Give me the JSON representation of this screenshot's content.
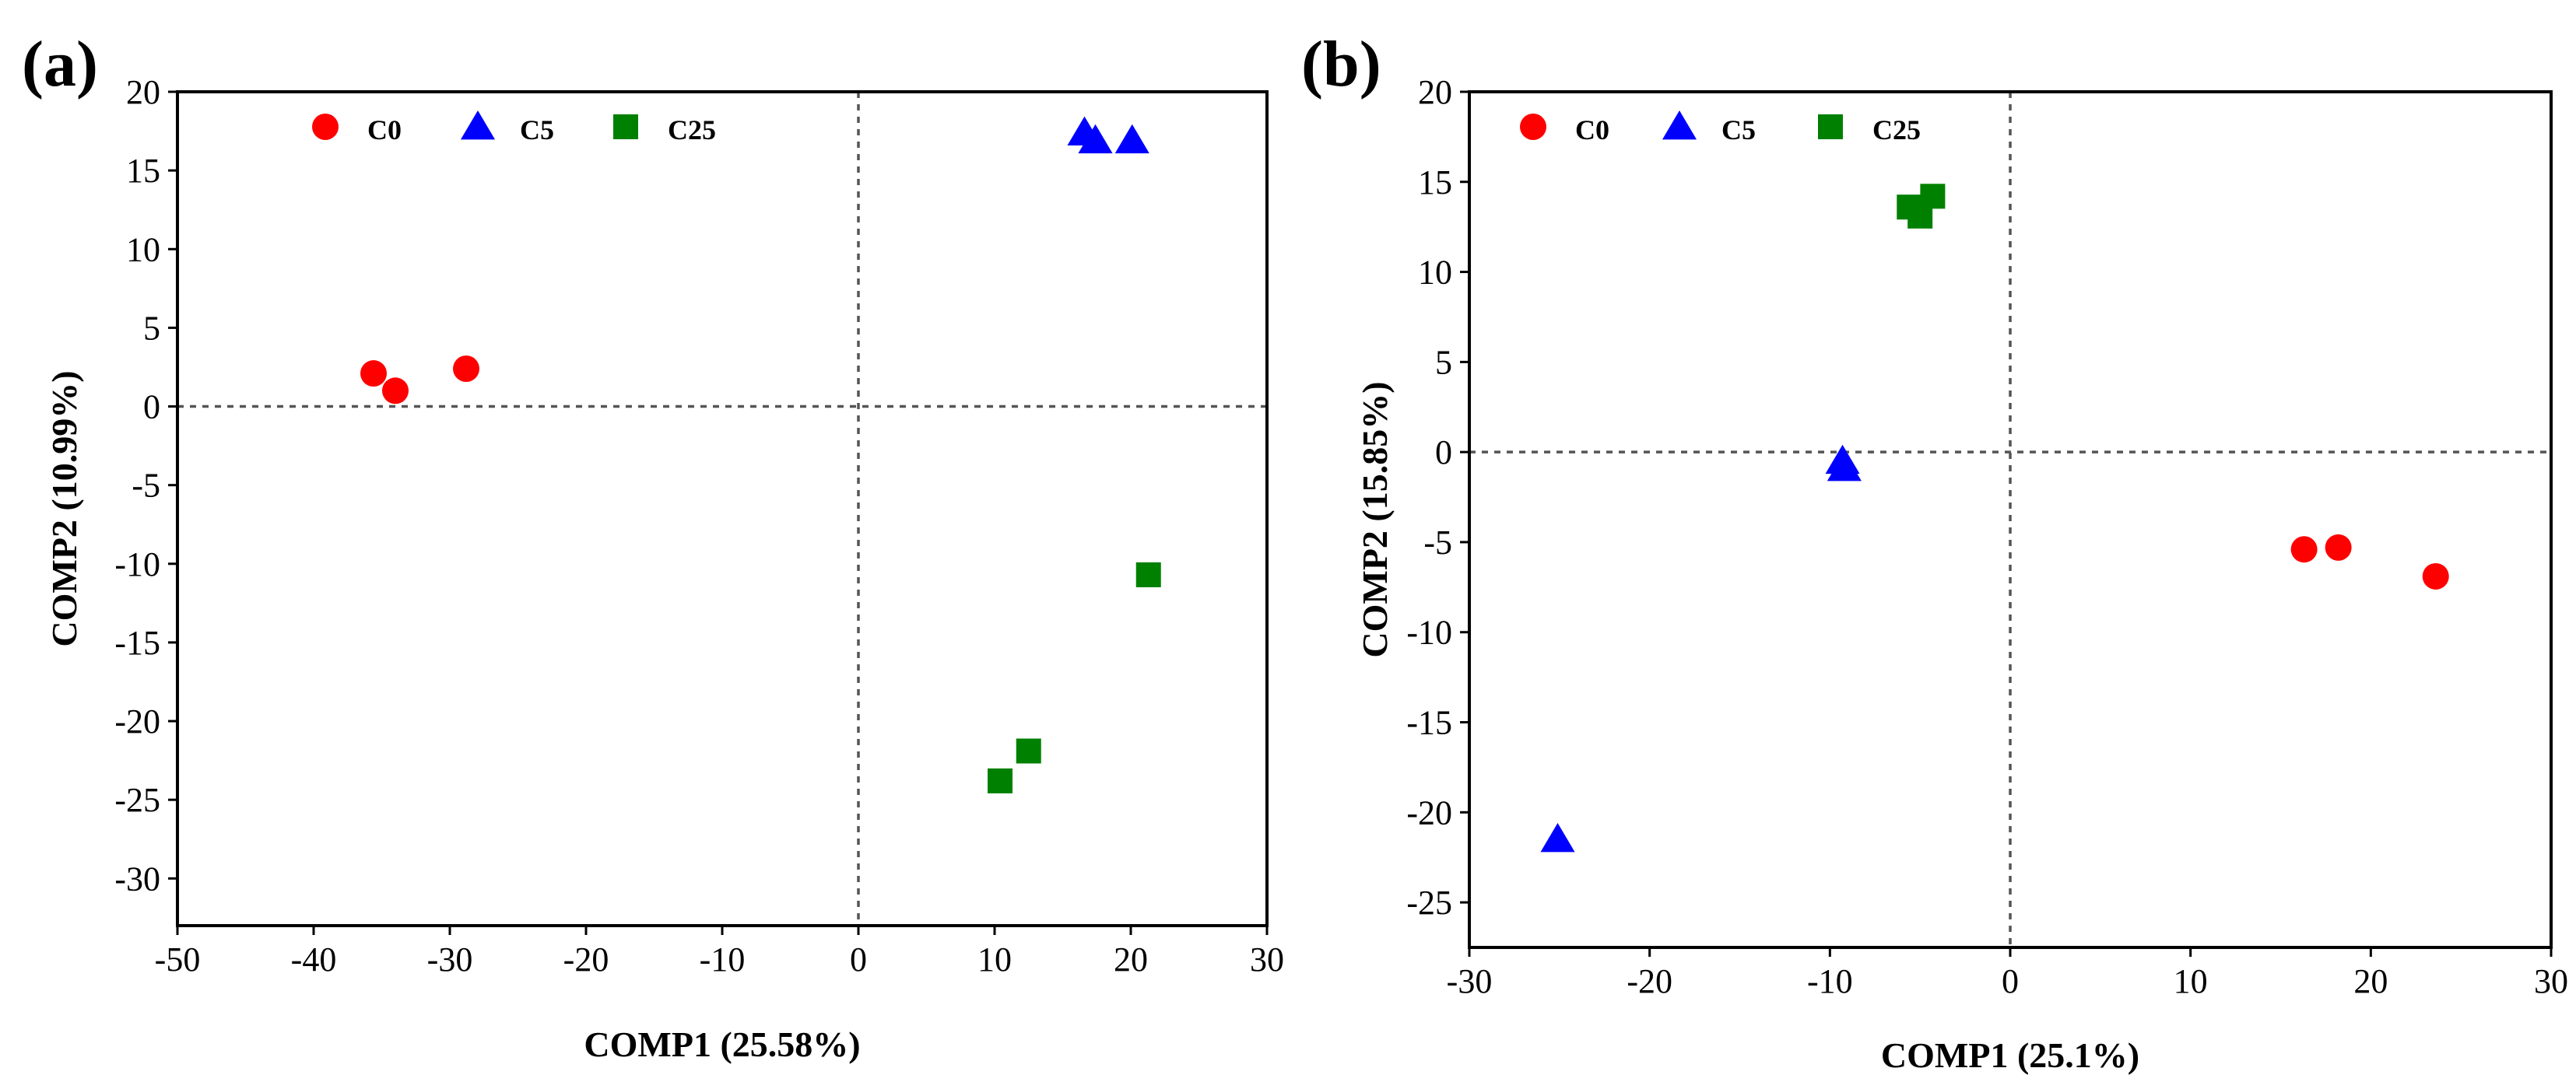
{
  "chart_data": [
    {
      "type": "scatter",
      "panel_label": "(a)",
      "xlabel": "COMP1 (25.58%)",
      "ylabel": "COMP2 (10.99%)",
      "xlim": [
        -50,
        30
      ],
      "ylim": [
        -33,
        20
      ],
      "xticks": [
        -50,
        -40,
        -30,
        -20,
        -10,
        0,
        10,
        20,
        30
      ],
      "yticks": [
        20,
        15,
        10,
        5,
        0,
        -5,
        -10,
        -15,
        -20,
        -25,
        -30
      ],
      "zero_lines": true,
      "legend_position": "top-left",
      "series": [
        {
          "name": "C0",
          "marker": "circle",
          "color": "#ff0000",
          "points": [
            [
              -35.6,
              2.1
            ],
            [
              -34,
              1.0
            ],
            [
              -28.8,
              2.4
            ]
          ]
        },
        {
          "name": "C5",
          "marker": "triangle",
          "color": "#0000ff",
          "points": [
            [
              16.6,
              17.4
            ],
            [
              17.4,
              16.9
            ],
            [
              20.1,
              16.9
            ]
          ]
        },
        {
          "name": "C25",
          "marker": "square",
          "color": "#008000",
          "points": [
            [
              21.3,
              -10.7
            ],
            [
              12.5,
              -21.9
            ],
            [
              10.4,
              -23.8
            ]
          ]
        }
      ]
    },
    {
      "type": "scatter",
      "panel_label": "(b)",
      "xlabel": "COMP1 (25.1%)",
      "ylabel": "COMP2 (15.85%)",
      "xlim": [
        -30,
        30
      ],
      "ylim": [
        -27.5,
        20
      ],
      "xticks": [
        -30,
        -20,
        -10,
        0,
        10,
        20,
        30
      ],
      "yticks": [
        20,
        15,
        10,
        5,
        0,
        -5,
        -10,
        -15,
        -20,
        -25
      ],
      "zero_lines": true,
      "legend_position": "top-left",
      "series": [
        {
          "name": "C0",
          "marker": "circle",
          "color": "#ff0000",
          "points": [
            [
              16.3,
              -5.4
            ],
            [
              18.2,
              -5.3
            ],
            [
              23.6,
              -6.9
            ]
          ]
        },
        {
          "name": "C5",
          "marker": "triangle",
          "color": "#0000ff",
          "points": [
            [
              -9.3,
              -0.5
            ],
            [
              -9.2,
              -0.9
            ],
            [
              -25.1,
              -21.5
            ]
          ]
        },
        {
          "name": "C25",
          "marker": "square",
          "color": "#008000",
          "points": [
            [
              -5.6,
              13.6
            ],
            [
              -5.0,
              13.1
            ],
            [
              -4.3,
              14.2
            ]
          ]
        }
      ]
    }
  ]
}
